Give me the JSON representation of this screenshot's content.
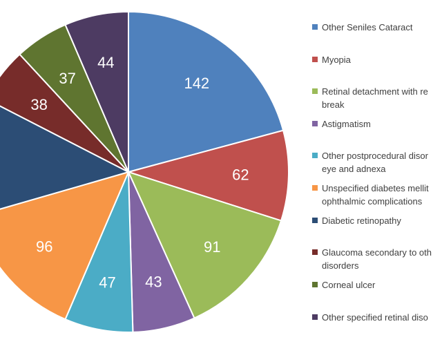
{
  "chart_data": {
    "type": "pie",
    "categories": [
      "Other Seniles Cataract",
      "Myopia",
      "Retinal detachment with retinal break",
      "Astigmatism",
      "Other postprocedural disorders of eye and adnexa",
      "Unspecified diabetes mellitus with ophthalmic complications",
      "Diabetic retinopathy",
      "Glaucoma secondary to other eye disorders",
      "Corneal ulcer",
      "Other specified retinal disorders"
    ],
    "values": [
      142,
      62,
      91,
      43,
      47,
      96,
      82,
      38,
      37,
      44
    ],
    "colors": [
      "#4f81bd",
      "#c0504d",
      "#9bbb59",
      "#8064a2",
      "#4bacc6",
      "#f79646",
      "#2c4d75",
      "#772c2a",
      "#5f7530",
      "#4d3b62"
    ],
    "data_labels": [
      "142",
      "62",
      "91",
      "43",
      "47",
      "96",
      "",
      "38",
      "37",
      "44"
    ],
    "legend_lines": [
      [
        "Other Seniles Cataract"
      ],
      [
        "Myopia"
      ],
      [
        "Retinal detachment with re",
        "break"
      ],
      [
        "Astigmatism"
      ],
      [
        "Other postprocedural disor",
        "eye and adnexa"
      ],
      [
        "Unspecified diabetes mellit",
        "ophthalmic complications"
      ],
      [
        "Diabetic retinopathy"
      ],
      [
        "Glaucoma secondary to oth",
        "disorders"
      ],
      [
        "Corneal ulcer"
      ],
      [
        "Other specified retinal diso"
      ]
    ],
    "legend_position": "right"
  }
}
